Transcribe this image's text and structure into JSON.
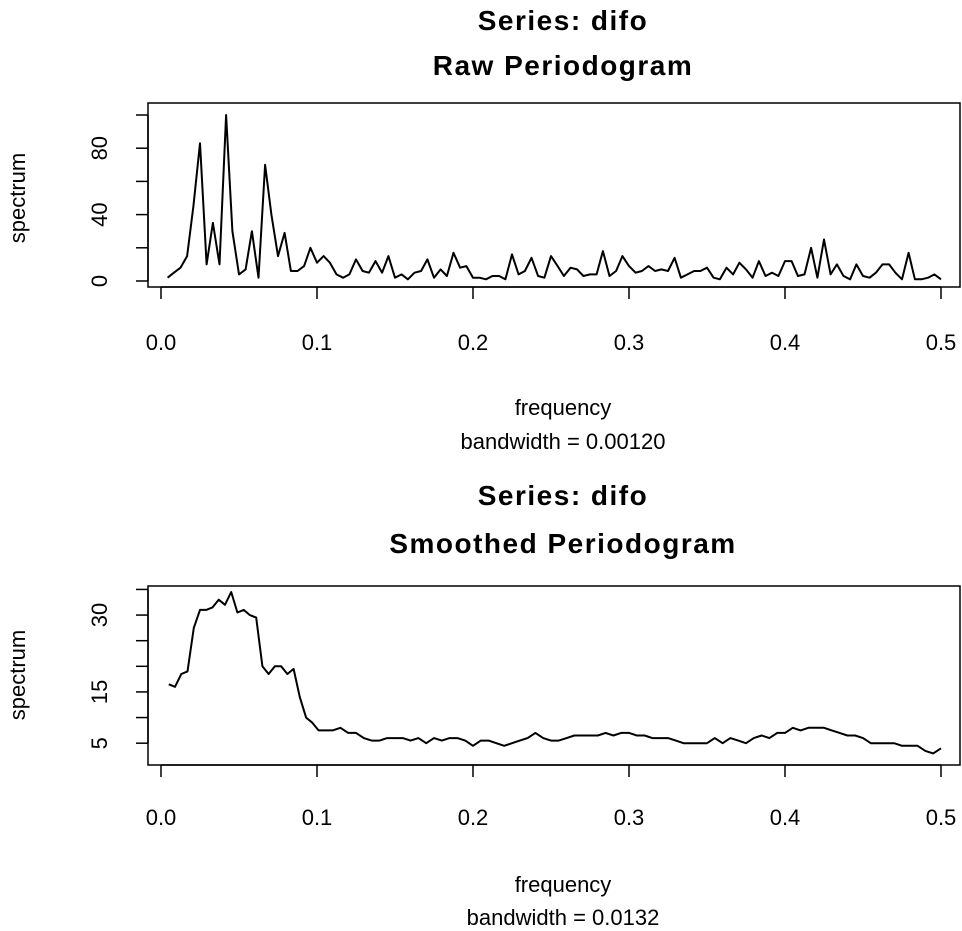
{
  "chart_data": [
    {
      "type": "line",
      "title": "Series: difo",
      "subtitle": "Raw Periodogram",
      "xlabel": "frequency",
      "bandwidth_note": "bandwidth = 0.00120",
      "ylabel": "spectrum",
      "xlim": [
        0,
        0.5
      ],
      "ylim": [
        0,
        100
      ],
      "x_ticks": [
        0.0,
        0.1,
        0.2,
        0.3,
        0.4,
        0.5
      ],
      "x_tick_labels": [
        "0.0",
        "0.1",
        "0.2",
        "0.3",
        "0.4",
        "0.5"
      ],
      "y_ticks": [
        0,
        20,
        40,
        60,
        80,
        100
      ],
      "y_tick_labels": [
        "0",
        "",
        "40",
        "",
        "80",
        ""
      ],
      "grid": false,
      "series": [
        {
          "x": [
            0.0042,
            0.0083,
            0.0125,
            0.0167,
            0.0208,
            0.025,
            0.0292,
            0.0333,
            0.0375,
            0.0417,
            0.0458,
            0.05,
            0.0542,
            0.0583,
            0.0625,
            0.0667,
            0.0708,
            0.075,
            0.0792,
            0.0833,
            0.0875,
            0.0917,
            0.0958,
            0.1,
            0.1042,
            0.1083,
            0.1125,
            0.1167,
            0.1208,
            0.125,
            0.1292,
            0.1333,
            0.1375,
            0.1417,
            0.1458,
            0.15,
            0.1542,
            0.1583,
            0.1625,
            0.1667,
            0.1708,
            0.175,
            0.1792,
            0.1833,
            0.1875,
            0.1917,
            0.1958,
            0.2,
            0.2042,
            0.2083,
            0.2125,
            0.2167,
            0.2208,
            0.225,
            0.2292,
            0.2333,
            0.2375,
            0.2417,
            0.2458,
            0.25,
            0.2542,
            0.2583,
            0.2625,
            0.2667,
            0.2708,
            0.275,
            0.2792,
            0.2833,
            0.2875,
            0.2917,
            0.2958,
            0.3,
            0.3042,
            0.3083,
            0.3125,
            0.3167,
            0.3208,
            0.325,
            0.3292,
            0.3333,
            0.3375,
            0.3417,
            0.3458,
            0.35,
            0.3542,
            0.3583,
            0.3625,
            0.3667,
            0.3708,
            0.375,
            0.3792,
            0.3833,
            0.3875,
            0.3917,
            0.3958,
            0.4,
            0.4042,
            0.4083,
            0.4125,
            0.4167,
            0.4208,
            0.425,
            0.4292,
            0.4333,
            0.4375,
            0.4417,
            0.4458,
            0.45,
            0.4542,
            0.4583,
            0.4625,
            0.4667,
            0.4708,
            0.475,
            0.4792,
            0.4833,
            0.4875,
            0.4917,
            0.4958,
            0.5
          ],
          "values": [
            2,
            5,
            8,
            15,
            45,
            83,
            10,
            35,
            10,
            100,
            30,
            4,
            7,
            30,
            2,
            70,
            40,
            15,
            29,
            6,
            6,
            9,
            20,
            11,
            15,
            11,
            4,
            2,
            4,
            13,
            6,
            5,
            12,
            5,
            15,
            2,
            4,
            1,
            5,
            6,
            13,
            2,
            7,
            3,
            17,
            8,
            9,
            2,
            2,
            1,
            3,
            3,
            1,
            16,
            4,
            6,
            14,
            3,
            2,
            15,
            9,
            3,
            8,
            7,
            3,
            4,
            4,
            18,
            3,
            6,
            15,
            9,
            5,
            6,
            9,
            6,
            7,
            6,
            14,
            2,
            4,
            6,
            6,
            8,
            2,
            1,
            8,
            4,
            11,
            7,
            2,
            12,
            3,
            5,
            3,
            12,
            12,
            3,
            4,
            20,
            2,
            25,
            4,
            10,
            3,
            1,
            10,
            3,
            2,
            5,
            10,
            10,
            5,
            1,
            17,
            1,
            1,
            2,
            4,
            1
          ]
        }
      ]
    },
    {
      "type": "line",
      "title": "Series: difo",
      "subtitle": "Smoothed Periodogram",
      "xlabel": "frequency",
      "bandwidth_note": "bandwidth = 0.0132",
      "ylabel": "spectrum",
      "xlim": [
        0,
        0.5
      ],
      "ylim": [
        2.5,
        34.5
      ],
      "x_ticks": [
        0.0,
        0.1,
        0.2,
        0.3,
        0.4,
        0.5
      ],
      "x_tick_labels": [
        "0.0",
        "0.1",
        "0.2",
        "0.3",
        "0.4",
        "0.5"
      ],
      "y_ticks": [
        5,
        10,
        15,
        20,
        25,
        30,
        35
      ],
      "y_tick_labels": [
        "5",
        "",
        "15",
        "",
        "",
        "30",
        ""
      ],
      "grid": false,
      "series": [
        {
          "x": [
            0.005,
            0.009,
            0.013,
            0.017,
            0.021,
            0.025,
            0.029,
            0.033,
            0.037,
            0.041,
            0.045,
            0.049,
            0.053,
            0.057,
            0.061,
            0.065,
            0.069,
            0.073,
            0.077,
            0.081,
            0.085,
            0.089,
            0.093,
            0.097,
            0.101,
            0.105,
            0.11,
            0.115,
            0.12,
            0.125,
            0.13,
            0.135,
            0.14,
            0.145,
            0.15,
            0.155,
            0.16,
            0.165,
            0.17,
            0.175,
            0.18,
            0.185,
            0.19,
            0.195,
            0.2,
            0.205,
            0.21,
            0.215,
            0.22,
            0.225,
            0.23,
            0.235,
            0.24,
            0.245,
            0.25,
            0.255,
            0.26,
            0.265,
            0.27,
            0.275,
            0.28,
            0.285,
            0.29,
            0.295,
            0.3,
            0.305,
            0.31,
            0.315,
            0.32,
            0.325,
            0.33,
            0.335,
            0.34,
            0.345,
            0.35,
            0.355,
            0.36,
            0.365,
            0.37,
            0.375,
            0.38,
            0.385,
            0.39,
            0.395,
            0.4,
            0.405,
            0.41,
            0.415,
            0.42,
            0.425,
            0.43,
            0.435,
            0.44,
            0.445,
            0.45,
            0.455,
            0.46,
            0.465,
            0.47,
            0.475,
            0.48,
            0.485,
            0.49,
            0.495,
            0.5
          ],
          "values": [
            16.5,
            16,
            18.5,
            19,
            27.5,
            31,
            31,
            31.5,
            33,
            32,
            34.5,
            30.5,
            31,
            30,
            29.5,
            20,
            18.5,
            20,
            20,
            18.5,
            19.5,
            14,
            10,
            9,
            7.5,
            7.5,
            7.5,
            8,
            7,
            7,
            6,
            5.5,
            5.5,
            6,
            6,
            6,
            5.5,
            6,
            5,
            6,
            5.5,
            6,
            6,
            5.5,
            4.5,
            5.5,
            5.5,
            5,
            4.5,
            5,
            5.5,
            6,
            7,
            6,
            5.5,
            5.5,
            6,
            6.5,
            6.5,
            6.5,
            6.5,
            7,
            6.5,
            7,
            7,
            6.5,
            6.5,
            6,
            6,
            6,
            5.5,
            5,
            5,
            5,
            5,
            6,
            5,
            6,
            5.5,
            5,
            6,
            6.5,
            6,
            7,
            7,
            8,
            7.5,
            8,
            8,
            8,
            7.5,
            7,
            6.5,
            6.5,
            6,
            5,
            5,
            5,
            5,
            4.5,
            4.5,
            4.5,
            3.5,
            3,
            4
          ]
        }
      ]
    }
  ]
}
